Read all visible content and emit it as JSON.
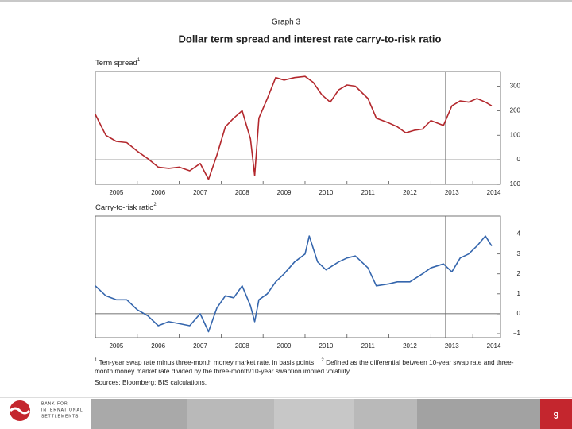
{
  "header": {
    "graph_label": "Graph 3",
    "title": "Dollar term spread and interest rate carry-to-risk ratio"
  },
  "chart_data": [
    {
      "type": "line",
      "ylabel": "Term spread",
      "ylabel_sup": "1",
      "x": [
        2005.0,
        2005.25,
        2005.5,
        2005.75,
        2006.0,
        2006.25,
        2006.5,
        2006.75,
        2007.0,
        2007.25,
        2007.5,
        2007.7,
        2007.9,
        2008.1,
        2008.3,
        2008.5,
        2008.7,
        2008.8,
        2008.9,
        2009.1,
        2009.3,
        2009.5,
        2009.75,
        2010.0,
        2010.2,
        2010.4,
        2010.6,
        2010.8,
        2011.0,
        2011.2,
        2011.5,
        2011.7,
        2012.0,
        2012.2,
        2012.4,
        2012.6,
        2012.8,
        2013.0,
        2013.3,
        2013.5,
        2013.7,
        2013.9,
        2014.1,
        2014.3,
        2014.45
      ],
      "series": [
        {
          "name": "Term spread",
          "color": "#b3282d",
          "values": [
            185,
            100,
            75,
            70,
            35,
            5,
            -30,
            -35,
            -30,
            -45,
            -15,
            -80,
            20,
            135,
            170,
            200,
            85,
            -65,
            170,
            250,
            335,
            325,
            335,
            340,
            315,
            265,
            235,
            285,
            305,
            300,
            250,
            170,
            150,
            135,
            110,
            120,
            125,
            160,
            140,
            220,
            240,
            235,
            250,
            235,
            220
          ]
        }
      ],
      "xlim": [
        2005,
        2014.66
      ],
      "xticks": [
        2005,
        2006,
        2007,
        2008,
        2009,
        2010,
        2011,
        2012,
        2013,
        2014
      ],
      "ylim": [
        -100,
        360
      ],
      "yticks": [
        {
          "value": -100,
          "label": "−100"
        },
        0,
        100,
        200,
        300
      ],
      "vline": 2013.35,
      "zero_line": true
    },
    {
      "type": "line",
      "ylabel": "Carry-to-risk ratio",
      "ylabel_sup": "2",
      "x": [
        2005.0,
        2005.25,
        2005.5,
        2005.75,
        2006.0,
        2006.25,
        2006.5,
        2006.75,
        2007.0,
        2007.25,
        2007.5,
        2007.7,
        2007.9,
        2008.1,
        2008.3,
        2008.5,
        2008.7,
        2008.8,
        2008.9,
        2009.1,
        2009.3,
        2009.5,
        2009.75,
        2010.0,
        2010.1,
        2010.3,
        2010.5,
        2010.8,
        2011.0,
        2011.2,
        2011.5,
        2011.7,
        2012.0,
        2012.2,
        2012.5,
        2012.8,
        2013.0,
        2013.3,
        2013.5,
        2013.7,
        2013.9,
        2014.1,
        2014.3,
        2014.45
      ],
      "series": [
        {
          "name": "Carry-to-risk ratio",
          "color": "#3566ad",
          "values": [
            1.4,
            0.9,
            0.7,
            0.7,
            0.2,
            -0.1,
            -0.6,
            -0.4,
            -0.5,
            -0.6,
            0,
            -0.9,
            0.3,
            0.9,
            0.8,
            1.4,
            0.4,
            -0.4,
            0.7,
            1.0,
            1.6,
            2.0,
            2.6,
            3.0,
            3.9,
            2.6,
            2.2,
            2.6,
            2.8,
            2.9,
            2.3,
            1.4,
            1.5,
            1.6,
            1.6,
            2.0,
            2.3,
            2.5,
            2.1,
            2.8,
            3.0,
            3.4,
            3.9,
            3.4
          ]
        }
      ],
      "xlim": [
        2005,
        2014.66
      ],
      "xticks": [
        2005,
        2006,
        2007,
        2008,
        2009,
        2010,
        2011,
        2012,
        2013,
        2014
      ],
      "ylim": [
        -1.2,
        4.9
      ],
      "yticks": [
        {
          "value": -1,
          "label": "−1"
        },
        0,
        1,
        2,
        3,
        4
      ],
      "vline": 2013.35,
      "zero_line": true
    }
  ],
  "footnotes": [
    {
      "mark": "1",
      "text": "Ten-year swap rate minus three-month money market rate, in basis points."
    },
    {
      "mark": "2",
      "text": "Defined as the differential between 10-year swap rate and three-month money market rate divided by the three-month/10-year swaption implied volatility."
    }
  ],
  "sources": "Sources: Bloomberg; BIS calculations.",
  "footer": {
    "org": [
      "BANK FOR",
      "INTERNATIONAL",
      "SETTLEMENTS"
    ],
    "page": "9"
  }
}
